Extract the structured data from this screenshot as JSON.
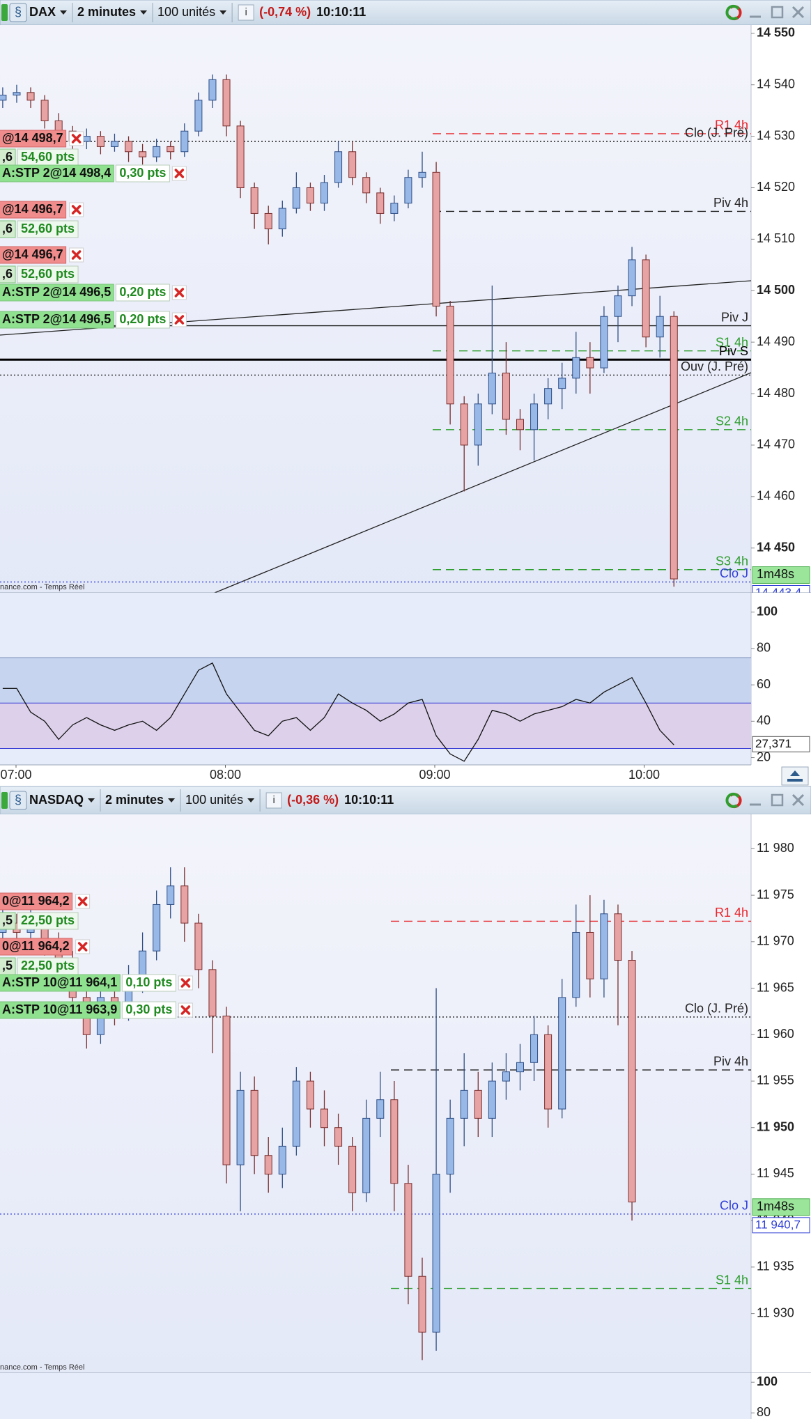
{
  "windows": [
    {
      "toolbar": {
        "symbol": "DAX",
        "interval": "2 minutes",
        "quantity": "100 unités",
        "change": "(-0,74 %)",
        "time": "10:10:11"
      },
      "chart_data": {
        "type": "candlestick",
        "open": [
          14537,
          14538,
          14538.5,
          14537,
          14533,
          14531,
          14529,
          14530,
          14528,
          14529,
          14527,
          14526,
          14528,
          14527,
          14531,
          14537,
          14541,
          14532,
          14520,
          14515,
          14512,
          14516,
          14520,
          14517,
          14521,
          14527,
          14522,
          14519,
          14515,
          14517,
          14522,
          14523,
          14497,
          14478,
          14470,
          14478,
          14484,
          14475,
          14473,
          14478,
          14481,
          14483,
          14487,
          14485,
          14495,
          14499,
          14506,
          14491,
          14495
        ],
        "high": [
          14539.5,
          14540,
          14539.5,
          14538,
          14534.5,
          14532,
          14531.5,
          14531,
          14530.5,
          14530,
          14528.5,
          14529.5,
          14529,
          14532.5,
          14538.5,
          14542,
          14542,
          14533,
          14521,
          14516.5,
          14517.5,
          14523,
          14521,
          14522.5,
          14529,
          14529,
          14523,
          14520,
          14518.5,
          14523.5,
          14527,
          14525,
          14498,
          14479.5,
          14480,
          14501,
          14490,
          14477,
          14480,
          14483,
          14486,
          14492,
          14490,
          14497,
          14501,
          14508.5,
          14507,
          14499,
          14496
        ],
        "low": [
          14535.5,
          14536.5,
          14535.5,
          14531.5,
          14529.5,
          14527.5,
          14527.5,
          14526.5,
          14527,
          14525,
          14524.5,
          14525,
          14525.5,
          14526,
          14530,
          14535.5,
          14530,
          14518,
          14512,
          14509,
          14510.5,
          14515,
          14515.5,
          14515.5,
          14520,
          14520.5,
          14517,
          14513,
          14513.5,
          14516,
          14520,
          14495,
          14474,
          14461,
          14466,
          14476,
          14472,
          14469,
          14467,
          14475,
          14477,
          14480,
          14480,
          14484,
          14490,
          14497,
          14489,
          14487,
          14442.5
        ],
        "close": [
          14538,
          14538.5,
          14537,
          14533,
          14531,
          14529,
          14530,
          14528,
          14529,
          14527,
          14526,
          14528,
          14527,
          14531,
          14537,
          14541,
          14532,
          14520,
          14515,
          14512,
          14516,
          14520,
          14517,
          14521,
          14527,
          14522,
          14519,
          14515,
          14517,
          14522,
          14523,
          14497,
          14478,
          14470,
          14478,
          14484,
          14475,
          14473,
          14478,
          14481,
          14483,
          14487,
          14485,
          14495,
          14499,
          14506,
          14491,
          14495,
          14444
        ],
        "ylim": [
          14441.3,
          14551.6
        ],
        "yticks": [
          {
            "value": 14550,
            "label": "14 550"
          },
          {
            "value": 14540,
            "label": "14 540"
          },
          {
            "value": 14530,
            "label": "14 530"
          },
          {
            "value": 14520,
            "label": "14 520"
          },
          {
            "value": 14510,
            "label": "14 510"
          },
          {
            "value": 14500,
            "label": "14 500"
          },
          {
            "value": 14490,
            "label": "14 490"
          },
          {
            "value": 14480,
            "label": "14 480"
          },
          {
            "value": 14470,
            "label": "14 470"
          },
          {
            "value": 14460,
            "label": "14 460"
          },
          {
            "value": 14450,
            "label": "14 450"
          }
        ],
        "levels": [
          {
            "label": "R1 4h",
            "value": 14530.5,
            "color": "#e8262b",
            "style": "dashed"
          },
          {
            "label": "Clo (J. Pré)",
            "value": 14529,
            "color": "#222222",
            "style": "dotted"
          },
          {
            "label": "Piv 4h",
            "value": 14515.4,
            "color": "#222222",
            "style": "dashed"
          },
          {
            "label": "Piv J",
            "value": 14493.2,
            "color": "#222222",
            "style": "solid"
          },
          {
            "label": "S1 4h",
            "value": 14488.3,
            "color": "#2e9e2e",
            "style": "dashed"
          },
          {
            "label": "Piv S",
            "value": 14486.6,
            "color": "#000000",
            "style": "bold"
          },
          {
            "label": "Ouv (J. Pré)",
            "value": 14483.6,
            "color": "#222222",
            "style": "dotted"
          },
          {
            "label": "S2 4h",
            "value": 14473,
            "color": "#2e9e2e",
            "style": "dashed"
          },
          {
            "label": "S3 4h",
            "value": 14445.8,
            "color": "#2e9e2e",
            "style": "dashed"
          },
          {
            "label": "Clo J",
            "value": 14443.4,
            "value_label": "14 443,4",
            "countdown": "1m48s",
            "color": "#2f3fd6",
            "style": "dotted"
          }
        ],
        "orders": [
          {
            "kind": "limit",
            "label": "@14 498,7"
          },
          {
            "kind": "pnl",
            "label": ",6",
            "pts": "54,60 pts"
          },
          {
            "kind": "stop",
            "label": "A:STP 2@14 498,4",
            "pts": "0,30 pts"
          },
          {
            "kind": "limit",
            "label": "@14 496,7"
          },
          {
            "kind": "pnl",
            "label": ",6",
            "pts": "52,60 pts"
          },
          {
            "kind": "limit",
            "label": "@14 496,7"
          },
          {
            "kind": "pnl",
            "label": ",6",
            "pts": "52,60 pts"
          },
          {
            "kind": "stop",
            "label": "A:STP 2@14 496,5",
            "pts": "0,20 pts"
          },
          {
            "kind": "stop",
            "label": "A:STP 2@14 496,5",
            "pts": "0,20 pts"
          }
        ]
      },
      "footer": "nance.com - Temps Réel",
      "rsi": {
        "ylim": [
          16,
          110.6
        ],
        "yticks": [
          100,
          80,
          60,
          40,
          20
        ],
        "bands": [
          25,
          50,
          75
        ],
        "values": [
          58,
          58,
          45,
          40,
          30,
          38,
          42,
          38,
          35,
          38,
          40,
          35,
          42,
          55,
          68,
          72,
          55,
          45,
          35,
          32,
          40,
          42,
          35,
          42,
          55,
          50,
          46,
          40,
          44,
          50,
          52,
          32,
          22,
          18,
          30,
          46,
          44,
          40,
          44,
          46,
          48,
          52,
          50,
          56,
          60,
          64,
          50,
          35,
          27
        ],
        "current": {
          "value": 27.371,
          "label": "27,371"
        }
      },
      "time_labels": [
        "07:00",
        "08:00",
        "09:00",
        "10:00"
      ]
    },
    {
      "toolbar": {
        "symbol": "NASDAQ",
        "interval": "2 minutes",
        "quantity": "100 unités",
        "change": "(-0,36 %)",
        "time": "10:10:11"
      },
      "chart_data": {
        "type": "candlestick",
        "open": [
          11971,
          11972,
          11971,
          11972,
          11970,
          11968,
          11964,
          11960,
          11964,
          11963,
          11966,
          11969,
          11974,
          11976,
          11972,
          11967,
          11962,
          11946,
          11954,
          11947,
          11945,
          11948,
          11955,
          11952,
          11950,
          11948,
          11943,
          11951,
          11953,
          11944,
          11934,
          11928,
          11945,
          11951,
          11954,
          11951,
          11955,
          11956,
          11957,
          11960,
          11952,
          11964,
          11971,
          11966,
          11973,
          11968
        ],
        "high": [
          11973.5,
          11973,
          11973.5,
          11973,
          11971,
          11969,
          11965,
          11965.5,
          11966,
          11967.5,
          11971,
          11975.5,
          11978,
          11978,
          11973,
          11968,
          11963,
          11956,
          11955.5,
          11949,
          11950,
          11956.5,
          11956,
          11954,
          11951.5,
          11949,
          11953,
          11956,
          11955,
          11946,
          11936,
          11965,
          11953,
          11958,
          11956,
          11957,
          11958,
          11959,
          11962,
          11961,
          11966,
          11974,
          11975,
          11974.5,
          11974,
          11969
        ],
        "low": [
          11969.5,
          11969.5,
          11970,
          11968.5,
          11966,
          11962,
          11958.5,
          11959,
          11961,
          11961.5,
          11964.5,
          11968,
          11972.5,
          11970,
          11965,
          11958,
          11944,
          11941,
          11945,
          11943,
          11943.5,
          11947,
          11950,
          11948,
          11946,
          11941,
          11942,
          11949,
          11941,
          11931,
          11925,
          11926,
          11943,
          11948,
          11949,
          11949,
          11953,
          11954,
          11955,
          11950,
          11951,
          11963,
          11964,
          11964,
          11961,
          11940
        ],
        "close": [
          11972,
          11971,
          11972,
          11970,
          11968,
          11964,
          11960,
          11964,
          11963,
          11966,
          11969,
          11974,
          11976,
          11972,
          11967,
          11962,
          11946,
          11954,
          11947,
          11945,
          11948,
          11955,
          11952,
          11950,
          11948,
          11943,
          11951,
          11953,
          11944,
          11934,
          11928,
          11945,
          11951,
          11954,
          11951,
          11955,
          11956,
          11957,
          11960,
          11952,
          11964,
          11971,
          11966,
          11973,
          11968,
          11942
        ],
        "ylim": [
          11923.6,
          11983.7
        ],
        "yticks": [
          {
            "value": 11980,
            "label": "11 980"
          },
          {
            "value": 11975,
            "label": "11 975"
          },
          {
            "value": 11970,
            "label": "11 970"
          },
          {
            "value": 11965,
            "label": "11 965"
          },
          {
            "value": 11960,
            "label": "11 960"
          },
          {
            "value": 11955,
            "label": "11 955"
          },
          {
            "value": 11950,
            "label": "11 950"
          },
          {
            "value": 11945,
            "label": "11 945"
          },
          {
            "value": 11940,
            "label": "11 940"
          },
          {
            "value": 11935,
            "label": "11 935"
          },
          {
            "value": 11930,
            "label": "11 930"
          }
        ],
        "levels": [
          {
            "label": "R1 4h",
            "value": 11972.2,
            "color": "#e8262b",
            "style": "dashed"
          },
          {
            "label": "Clo (J. Pré)",
            "value": 11961.9,
            "color": "#222222",
            "style": "dotted"
          },
          {
            "label": "Piv 4h",
            "value": 11956.2,
            "color": "#222222",
            "style": "dashed"
          },
          {
            "label": "Clo J",
            "value": 11940.7,
            "value_label": "11 940,7",
            "countdown": "1m48s",
            "color": "#2f3fd6",
            "style": "dotted"
          },
          {
            "label": "S1 4h",
            "value": 11932.7,
            "color": "#2e9e2e",
            "style": "dashed"
          }
        ],
        "orders": [
          {
            "kind": "limit",
            "label": "0@11 964,2"
          },
          {
            "kind": "pnl",
            "label": ",5",
            "pts": "22,50 pts"
          },
          {
            "kind": "limit",
            "label": "0@11 964,2"
          },
          {
            "kind": "pnl",
            "label": ",5",
            "pts": "22,50 pts"
          },
          {
            "kind": "stop",
            "label": "A:STP 10@11 964,1",
            "pts": "0,10 pts"
          },
          {
            "kind": "stop",
            "label": "A:STP 10@11 963,9",
            "pts": "0,30 pts"
          }
        ]
      },
      "footer": "nance.com - Temps Réel",
      "rsi": {
        "ylim": [
          76,
          106
        ],
        "yticks": [
          100,
          80
        ]
      }
    }
  ]
}
